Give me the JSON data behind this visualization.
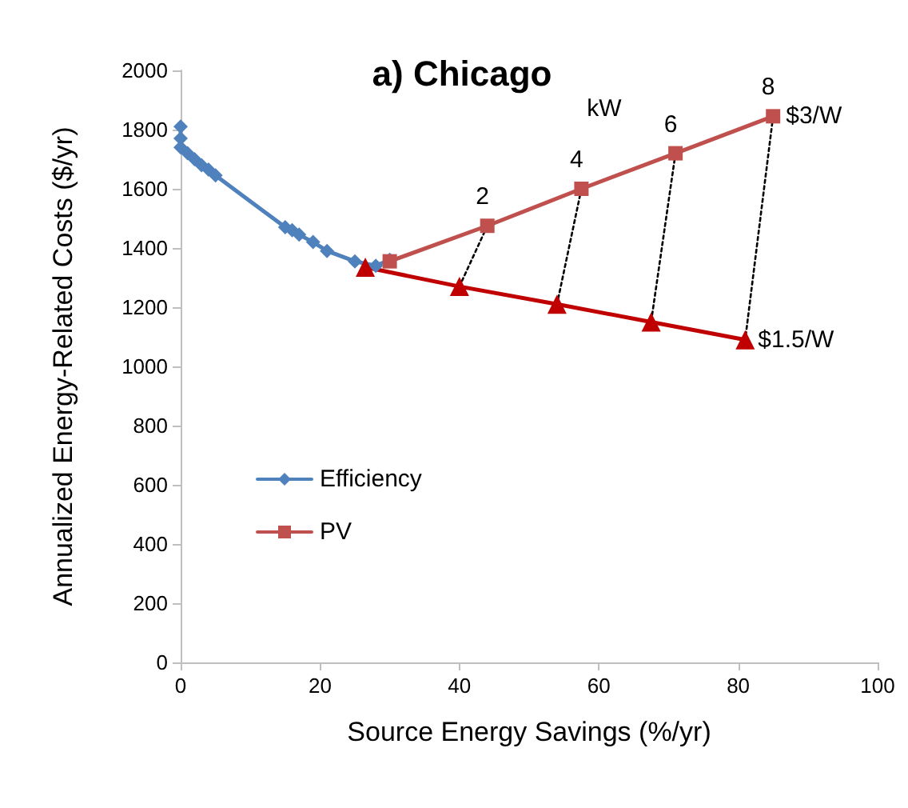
{
  "chart_data": {
    "type": "line",
    "title": "a) Chicago",
    "xlabel": "Source Energy Savings (%/yr)",
    "ylabel": "Annualized Energy-Related Costs ($/yr)",
    "xlim": [
      0,
      100
    ],
    "xticks": [
      0,
      20,
      40,
      60,
      80,
      100
    ],
    "ylim": [
      0,
      2000
    ],
    "yticks": [
      0,
      200,
      400,
      600,
      800,
      1000,
      1200,
      1400,
      1600,
      1800,
      2000
    ],
    "grid": false,
    "legend": "bottom left",
    "series": [
      {
        "name": "Efficiency",
        "color": "#4f81bd",
        "marker": "diamond",
        "x": [
          0,
          0,
          0,
          1,
          2,
          3,
          4,
          5,
          15,
          16,
          17,
          19,
          21,
          25,
          28,
          30
        ],
        "values": [
          1810,
          1770,
          1740,
          1720,
          1700,
          1680,
          1665,
          1645,
          1470,
          1460,
          1445,
          1420,
          1390,
          1355,
          1340,
          1360
        ]
      },
      {
        "name": "PV",
        "color": "#c0504d",
        "marker": "square",
        "x": [
          30,
          44,
          57.5,
          71,
          85
        ],
        "values": [
          1355,
          1475,
          1600,
          1720,
          1845
        ]
      },
      {
        "color": "#c00000",
        "marker": "triangle",
        "x": [
          26.5,
          40,
          54,
          67.5,
          81
        ],
        "values": [
          1335,
          1270,
          1210,
          1150,
          1090
        ]
      },
      {
        "color": "#000000",
        "marker": "none",
        "line_style": "dotted",
        "x": [
          44,
          40
        ],
        "values": [
          1475,
          1270
        ]
      },
      {
        "color": "#000000",
        "marker": "none",
        "line_style": "dotted",
        "x": [
          57.5,
          54
        ],
        "values": [
          1600,
          1210
        ]
      },
      {
        "color": "#000000",
        "marker": "none",
        "line_style": "dotted",
        "x": [
          71,
          67.5
        ],
        "values": [
          1720,
          1150
        ]
      },
      {
        "color": "#000000",
        "marker": "none",
        "line_style": "dotted",
        "x": [
          85,
          81
        ],
        "values": [
          1845,
          1090
        ]
      }
    ],
    "annotations": [
      {
        "text": "kW"
      },
      {
        "text": "2",
        "x": 44,
        "y": 1475
      },
      {
        "text": "4",
        "x": 57.5,
        "y": 1600
      },
      {
        "text": "6",
        "x": 71,
        "y": 1720
      },
      {
        "text": "8",
        "x": 85,
        "y": 1845
      },
      {
        "text": "$3/W",
        "x": 85,
        "y": 1845
      },
      {
        "text": "$1.5/W",
        "x": 81,
        "y": 1090
      }
    ]
  }
}
